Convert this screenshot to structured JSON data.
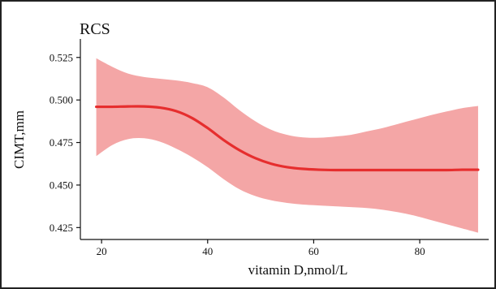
{
  "chart_data": {
    "type": "line",
    "title": "RCS",
    "xlabel": "vitamin D,nmol/L",
    "ylabel": "CIMT,mm",
    "xlim": [
      16,
      93
    ],
    "ylim": [
      0.418,
      0.533
    ],
    "x_ticks": [
      20,
      40,
      60,
      80
    ],
    "y_ticks": [
      0.425,
      0.45,
      0.475,
      0.5,
      0.525
    ],
    "y_tick_labels": [
      "0.425",
      "0.450",
      "0.475",
      "0.500",
      "0.525"
    ],
    "grid": false,
    "colors": {
      "line": "#e62e2e",
      "band": "#f4a6a6"
    },
    "series": [
      {
        "x": [
          19,
          22,
          25,
          28,
          31,
          34,
          37,
          40,
          43,
          46,
          49,
          52,
          55,
          58,
          61,
          64,
          67,
          70,
          73,
          76,
          79,
          82,
          85,
          88,
          91
        ],
        "y": [
          0.496,
          0.496,
          0.4962,
          0.4962,
          0.4955,
          0.4935,
          0.4895,
          0.4835,
          0.4765,
          0.4705,
          0.4658,
          0.4625,
          0.4605,
          0.4595,
          0.459,
          0.4588,
          0.4588,
          0.4588,
          0.4588,
          0.4588,
          0.4588,
          0.4588,
          0.4588,
          0.459,
          0.459
        ],
        "lower": [
          0.467,
          0.4735,
          0.477,
          0.4775,
          0.4755,
          0.4715,
          0.4665,
          0.4605,
          0.4535,
          0.4475,
          0.4435,
          0.441,
          0.4395,
          0.4385,
          0.438,
          0.4375,
          0.437,
          0.4365,
          0.4355,
          0.434,
          0.432,
          0.4295,
          0.427,
          0.4245,
          0.422
        ],
        "upper": [
          0.5245,
          0.5195,
          0.5155,
          0.5135,
          0.5125,
          0.5115,
          0.51,
          0.5075,
          0.5015,
          0.494,
          0.4875,
          0.4825,
          0.4795,
          0.478,
          0.4778,
          0.4785,
          0.4795,
          0.4815,
          0.4835,
          0.486,
          0.4885,
          0.491,
          0.4932,
          0.4952,
          0.4965
        ]
      }
    ]
  }
}
